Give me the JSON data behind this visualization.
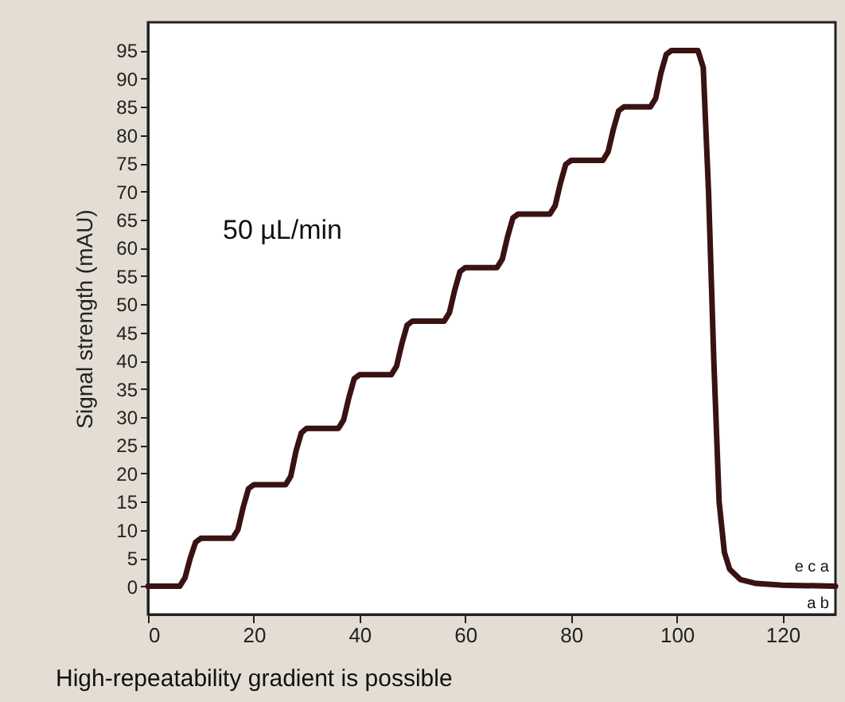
{
  "chart_data": {
    "type": "line",
    "xlabel": null,
    "ylabel": "Signal strength (mAU)",
    "x": [
      0,
      6,
      7,
      8,
      9,
      10,
      16,
      17,
      18,
      19,
      20,
      26,
      27,
      28,
      29,
      30,
      36,
      37,
      38,
      39,
      40,
      46,
      47,
      48,
      49,
      50,
      56,
      57,
      58,
      59,
      60,
      66,
      67,
      68,
      69,
      70,
      76,
      77,
      78,
      79,
      80,
      86,
      87,
      88,
      89,
      90,
      95,
      96,
      97,
      98,
      99,
      104,
      105,
      106,
      107,
      108,
      109,
      110,
      112,
      115,
      120,
      130
    ],
    "series": [
      {
        "color": "#3a1212",
        "values": [
          0,
          0,
          1.5,
          5,
          7.8,
          8.5,
          8.5,
          10,
          14,
          17.3,
          18,
          18,
          19.5,
          24,
          27.2,
          28,
          28,
          29.5,
          33.5,
          36.8,
          37.5,
          37.5,
          39,
          43,
          46.3,
          47,
          47,
          48.5,
          52.5,
          55.8,
          56.5,
          56.5,
          58,
          62,
          65.3,
          66,
          66,
          67.5,
          71.5,
          74.8,
          75.5,
          75.5,
          77,
          81,
          84.3,
          85,
          85,
          86.5,
          91,
          94.3,
          95,
          95,
          92,
          70,
          40,
          15,
          6,
          3,
          1.2,
          0.5,
          0.2,
          0
        ]
      }
    ],
    "xlim": [
      0,
      130
    ],
    "xticks": [
      0,
      20,
      40,
      60,
      80,
      100,
      120
    ],
    "ylim": [
      -5,
      100
    ],
    "yticks": [
      0,
      5,
      10,
      15,
      20,
      25,
      30,
      35,
      40,
      45,
      50,
      55,
      60,
      65,
      70,
      75,
      80,
      85,
      90,
      95
    ],
    "grid": false,
    "marker": "none",
    "line_style": "solid",
    "annotations": [
      "50 µL/min",
      "High-repeatability gradient is possible",
      "e c a",
      "a b"
    ]
  }
}
